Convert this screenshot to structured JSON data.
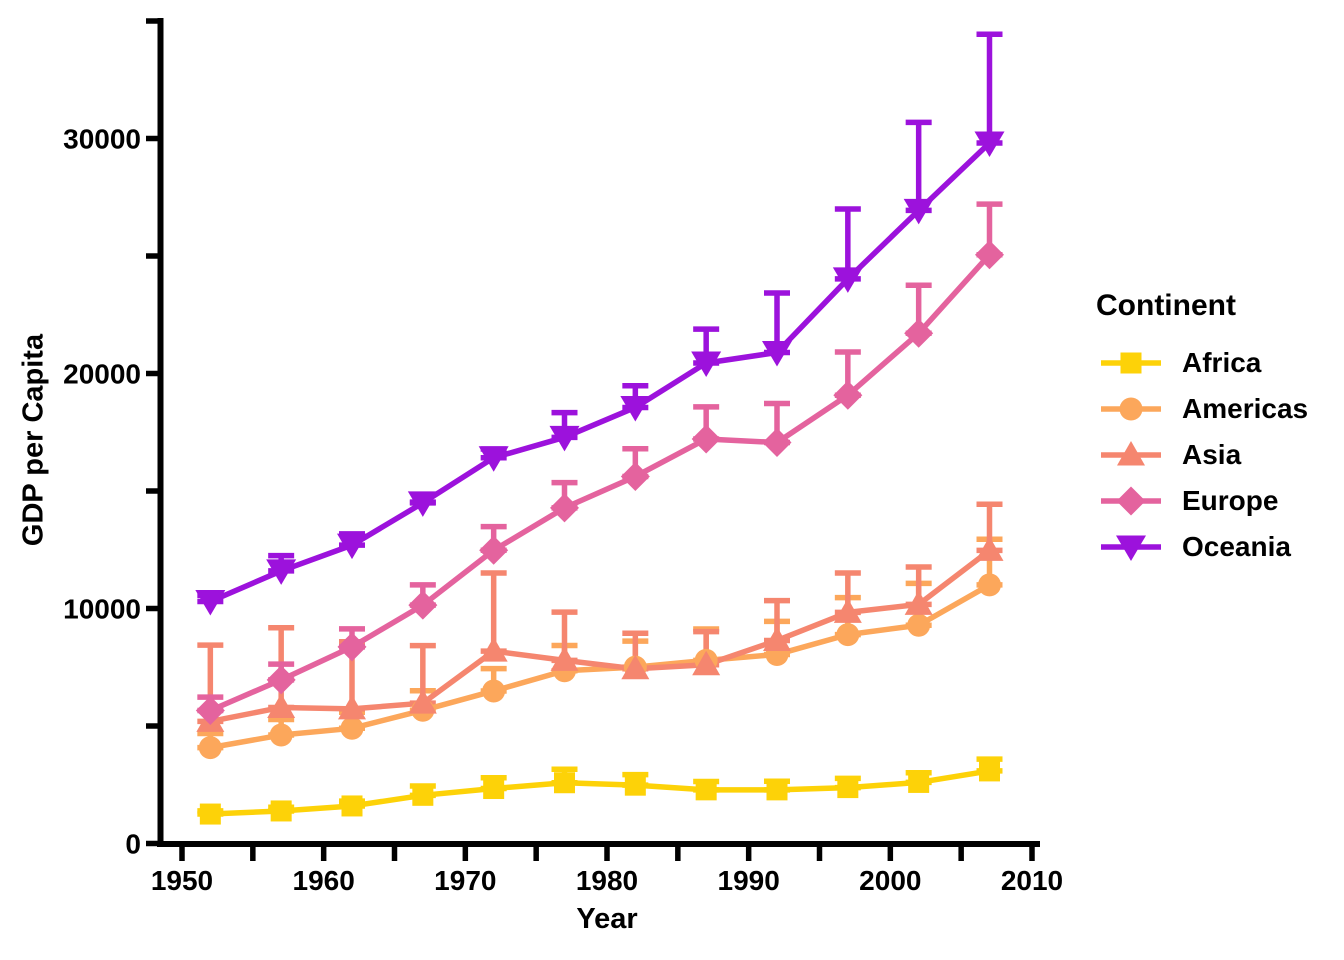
{
  "figure": {
    "background": "#FFFFFF",
    "axis_color": "#000000",
    "text_color": "#000000"
  },
  "chart_data": {
    "type": "line",
    "title": "",
    "xlabel": "Year",
    "ylabel": "GDP per Capita",
    "legend": {
      "title": "Continent",
      "position": "right"
    },
    "grid": false,
    "xlim": [
      1950,
      2010
    ],
    "ylim": [
      0,
      35000
    ],
    "x_major_ticks": [
      1950,
      1960,
      1970,
      1980,
      1990,
      2000,
      2010
    ],
    "x_minor_ticks": [
      1955,
      1965,
      1975,
      1985,
      1995,
      2005
    ],
    "y_major_ticks": [
      0,
      10000,
      20000,
      30000
    ],
    "y_minor_ticks": [
      5000,
      15000,
      25000,
      35000
    ],
    "error_bars": "upper error bar from mean to mean + standard error, with caps at both ends",
    "x": [
      1952,
      1957,
      1962,
      1967,
      1972,
      1977,
      1982,
      1987,
      1992,
      1997,
      2002,
      2007
    ],
    "series": [
      {
        "name": "Africa",
        "color": "#FDD208",
        "marker": "square",
        "values": [
          1253,
          1385,
          1598,
          2050,
          2340,
          2586,
          2482,
          2283,
          2282,
          2379,
          2599,
          3089
        ],
        "upper": [
          1389,
          1542,
          1801,
          2445,
          2796,
          3160,
          2931,
          2639,
          2648,
          2770,
          3012,
          3591
        ]
      },
      {
        "name": "Americas",
        "color": "#FCA75B",
        "marker": "circle",
        "values": [
          4079,
          4616,
          4902,
          5668,
          6491,
          7352,
          7507,
          7793,
          8045,
          8889,
          9288,
          11003
        ],
        "upper": [
          4679,
          5278,
          5586,
          6500,
          7442,
          8423,
          8613,
          9126,
          9454,
          10464,
          11067,
          12946
        ]
      },
      {
        "name": "Asia",
        "color": "#F5866F",
        "marker": "triangle-up",
        "values": [
          5195,
          5788,
          5729,
          5971,
          8187,
          7791,
          7434,
          7608,
          8640,
          9834,
          10174,
          12473
        ],
        "upper": [
          8439,
          9183,
          8587,
          8419,
          11510,
          9848,
          8949,
          9016,
          10333,
          11508,
          11767,
          14437
        ]
      },
      {
        "name": "Europe",
        "color": "#E4639E",
        "marker": "diamond",
        "values": [
          5661,
          6963,
          8365,
          10144,
          12480,
          14283,
          15618,
          17214,
          17062,
          19077,
          21712,
          25054
        ],
        "upper": [
          6230,
          7634,
          9132,
          11006,
          13486,
          15356,
          16796,
          18581,
          18725,
          20915,
          23756,
          27209
        ]
      },
      {
        "name": "Oceania",
        "color": "#9C12DC",
        "marker": "triangle-down",
        "values": [
          10298,
          11599,
          12696,
          14495,
          16417,
          17284,
          18555,
          20448,
          20894,
          24024,
          26939,
          29810
        ],
        "upper": [
          10557,
          12248,
          13176,
          14526,
          16789,
          18334,
          19477,
          21889,
          23425,
          26998,
          30688,
          34435
        ]
      }
    ]
  }
}
